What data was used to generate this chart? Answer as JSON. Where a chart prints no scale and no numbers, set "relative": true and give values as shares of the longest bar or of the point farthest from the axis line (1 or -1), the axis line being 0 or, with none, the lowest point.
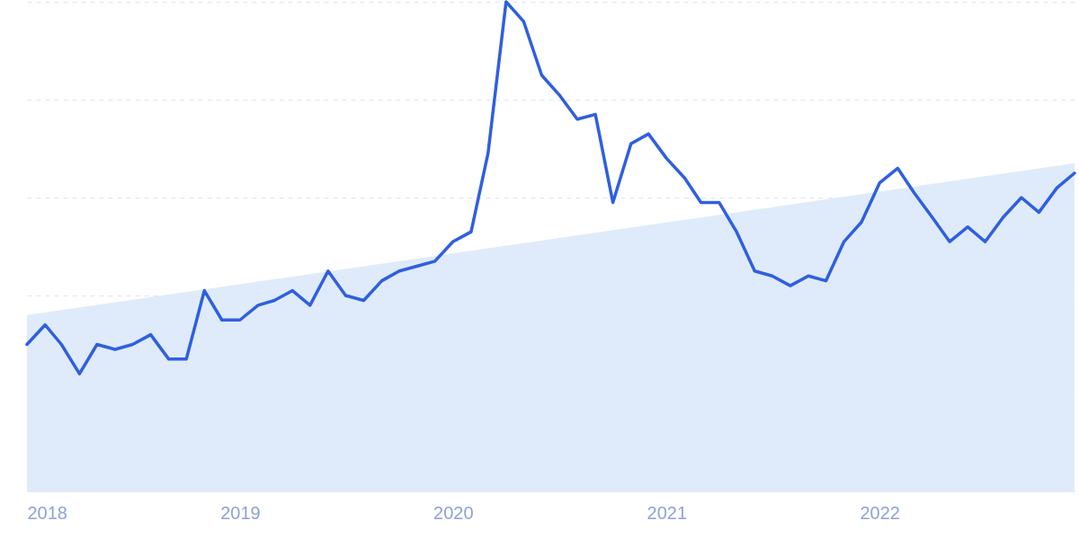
{
  "chart_data": {
    "type": "line",
    "relative": true,
    "grid": "y",
    "x": [
      "2018-01",
      "2018-02",
      "2018-03",
      "2018-04",
      "2018-05",
      "2018-06",
      "2018-07",
      "2018-08",
      "2018-09",
      "2018-10",
      "2018-11",
      "2018-12",
      "2019-01",
      "2019-02",
      "2019-03",
      "2019-04",
      "2019-05",
      "2019-06",
      "2019-07",
      "2019-08",
      "2019-09",
      "2019-10",
      "2019-11",
      "2019-12",
      "2020-01",
      "2020-02",
      "2020-03",
      "2020-04",
      "2020-05",
      "2020-06",
      "2020-07",
      "2020-08",
      "2020-09",
      "2020-10",
      "2020-11",
      "2020-12",
      "2021-01",
      "2021-02",
      "2021-03",
      "2021-04",
      "2021-05",
      "2021-06",
      "2021-07",
      "2021-08",
      "2021-09",
      "2021-10",
      "2021-11",
      "2021-12",
      "2022-01",
      "2022-02",
      "2022-03",
      "2022-04",
      "2022-05",
      "2022-06",
      "2022-07",
      "2022-08",
      "2022-09",
      "2022-10",
      "2022-11",
      "2022-12"
    ],
    "xlim": [
      "2018-01",
      "2022-12"
    ],
    "xticks": [
      "2018",
      "2019",
      "2020",
      "2021",
      "2022"
    ],
    "series": [
      {
        "type": "area",
        "color": "#dce9f9",
        "x": [
          "2018-01",
          "2022-12"
        ],
        "values": [
          0.36,
          0.67
        ]
      },
      {
        "color": "#2f5fe0",
        "values": [
          0.3,
          0.34,
          0.3,
          0.24,
          0.3,
          0.29,
          0.3,
          0.32,
          0.27,
          0.27,
          0.41,
          0.35,
          0.35,
          0.38,
          0.39,
          0.41,
          0.38,
          0.45,
          0.4,
          0.39,
          0.43,
          0.45,
          0.46,
          0.47,
          0.51,
          0.53,
          0.69,
          1,
          0.96,
          0.85,
          0.81,
          0.76,
          0.77,
          0.59,
          0.71,
          0.73,
          0.68,
          0.64,
          0.59,
          0.59,
          0.53,
          0.45,
          0.44,
          0.42,
          0.44,
          0.43,
          0.51,
          0.55,
          0.63,
          0.66,
          0.61,
          0.56,
          0.51,
          0.54,
          0.51,
          0.56,
          0.6,
          0.57,
          0.62,
          0.65
        ]
      }
    ]
  }
}
